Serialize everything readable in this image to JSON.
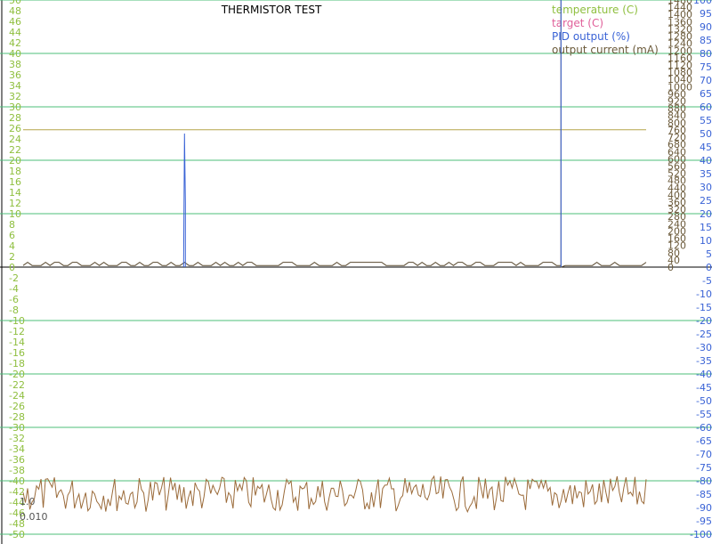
{
  "chart_data": {
    "type": "line",
    "title": "THERMISTOR TEST",
    "legend": [
      {
        "label": "temperature (C)",
        "color": "#8fbf3f"
      },
      {
        "label": "target (C)",
        "color": "#e0609a"
      },
      {
        "label": "PID output (%)",
        "color": "#3a63d6"
      },
      {
        "label": "output current (mA)",
        "color": "#6b5a3a"
      }
    ],
    "legend_position": "top-right",
    "grid": true,
    "axes": {
      "left": {
        "label": "",
        "range": [
          -50,
          50
        ],
        "ticks": [
          "50",
          "48",
          "46",
          "44",
          "42",
          "40",
          "38",
          "36",
          "34",
          "32",
          "30",
          "28",
          "26",
          "24",
          "22",
          "20",
          "18",
          "16",
          "14",
          "12",
          "10",
          "8",
          "6",
          "4",
          "2",
          "0",
          "-2",
          "-4",
          "-6",
          "-8",
          "-10",
          "-12",
          "-14",
          "-16",
          "-18",
          "-20",
          "-22",
          "-24",
          "-26",
          "-28",
          "-30",
          "-32",
          "-34",
          "-36",
          "-38",
          "-40",
          "-42",
          "-44",
          "-46",
          "-48",
          "-50"
        ],
        "color": "#8fbf3f"
      },
      "right_current": {
        "label": "",
        "range": [
          0,
          1480
        ],
        "ticks": [
          "1480",
          "1440",
          "1400",
          "1360",
          "1320",
          "1280",
          "1240",
          "1200",
          "1160",
          "1120",
          "1080",
          "1040",
          "1000",
          "960",
          "920",
          "880",
          "840",
          "800",
          "760",
          "720",
          "680",
          "640",
          "600",
          "560",
          "520",
          "480",
          "440",
          "400",
          "360",
          "320",
          "280",
          "240",
          "200",
          "160",
          "120",
          "80",
          "40",
          "0"
        ],
        "color": "#6b5a3a"
      },
      "right_pid": {
        "label": "",
        "range": [
          -100,
          100
        ],
        "ticks": [
          "100",
          "95",
          "90",
          "85",
          "80",
          "75",
          "70",
          "65",
          "60",
          "55",
          "50",
          "45",
          "40",
          "35",
          "30",
          "25",
          "20",
          "15",
          "10",
          "5",
          "0",
          "-5",
          "-10",
          "-15",
          "-20",
          "-25",
          "-30",
          "-35",
          "-40",
          "-45",
          "-50",
          "-55",
          "-60",
          "-65",
          "-70",
          "-75",
          "-80",
          "-85",
          "-90",
          "-95",
          "-100"
        ],
        "color": "#3a63d6"
      }
    },
    "misc_labels": [
      "1.0",
      "0.010"
    ],
    "series": [
      {
        "name": "temperature (C)",
        "axis": "left",
        "baseline": 0.3,
        "amplitude": 0.6,
        "spike_at_index": 120,
        "spike_to": 50
      },
      {
        "name": "target (C)",
        "axis": "left",
        "constant": 25.7
      },
      {
        "name": "PID output (%)",
        "axis": "right_pid",
        "spike_at_index": 36,
        "spike_to": 50,
        "spike_bottom": 24,
        "second_spike_index": 120,
        "second_spike_to": 100
      },
      {
        "name": "output current (mA)",
        "axis": "right_current",
        "typical_mA": 1000,
        "noise_mA": 80
      }
    ],
    "samples": 140
  }
}
